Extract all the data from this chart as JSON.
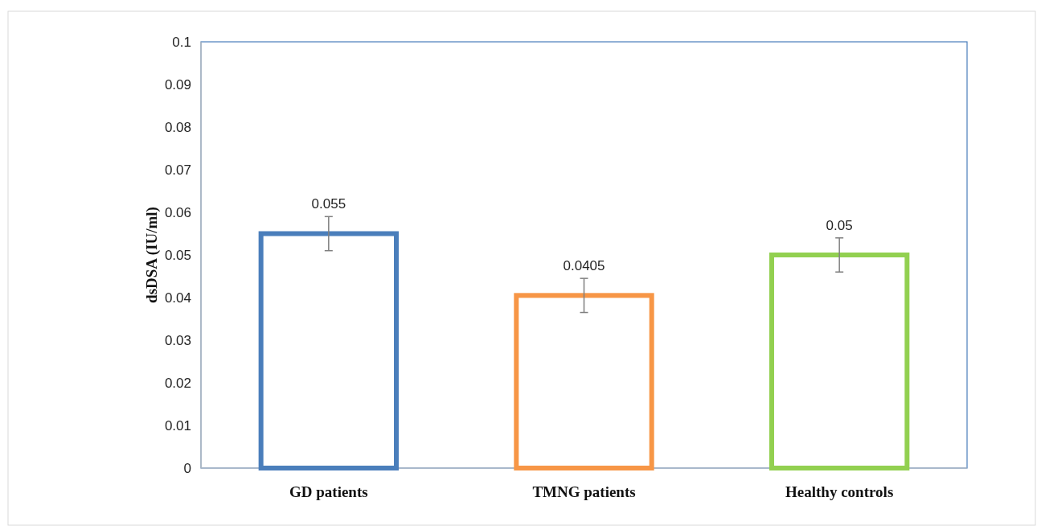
{
  "chart_data": {
    "type": "bar",
    "ylabel": "dsDSA (IU/ml)",
    "categories": [
      "GD patients",
      "TMNG patients",
      "Healthy controls"
    ],
    "values": [
      0.055,
      0.0405,
      0.05
    ],
    "colors": [
      "#4a7ebb",
      "#f79646",
      "#92d050"
    ],
    "errors": [
      0.004,
      0.004,
      0.004
    ],
    "data_labels": true,
    "ylim": [
      0,
      0.1
    ],
    "yticks": [
      0,
      0.01,
      0.02,
      0.03,
      0.04,
      0.05,
      0.06,
      0.07,
      0.08,
      0.09,
      0.1
    ],
    "grid": false
  }
}
